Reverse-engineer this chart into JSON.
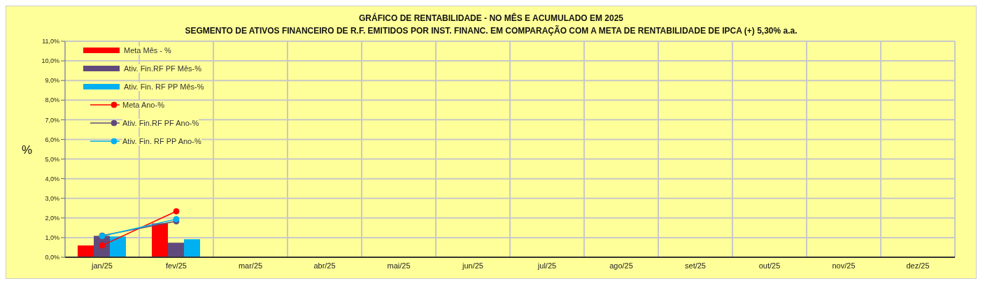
{
  "chart_data": {
    "type": "bar",
    "title": "GRÁFICO DE RENTABILIDADE - NO MÊS E ACUMULADO EM 2025",
    "subtitle": "SEGMENTO DE ATIVOS FINANCEIRO DE R.F. EMITIDOS POR INST. FINANC. EM COMPARAÇÃO COM A META DE RENTABILIDADE DE IPCA (+) 5,30% a.a.",
    "ylabel": "%",
    "categories": [
      "jan/25",
      "fev/25",
      "mar/25",
      "abr/25",
      "mai/25",
      "jun/25",
      "jul/25",
      "ago/25",
      "set/25",
      "out/25",
      "nov/25",
      "dez/25"
    ],
    "series": [
      {
        "name": "Meta Mês - %",
        "type": "bar",
        "color": "#ff0000",
        "values": [
          0.6,
          1.73,
          null,
          null,
          null,
          null,
          null,
          null,
          null,
          null,
          null,
          null
        ]
      },
      {
        "name": "Ativ. Fin.RF PF Mês-%",
        "type": "bar",
        "color": "#604a7b",
        "values": [
          1.09,
          0.74,
          null,
          null,
          null,
          null,
          null,
          null,
          null,
          null,
          null,
          null
        ]
      },
      {
        "name": "Ativ. Fin. RF PP Mês-%",
        "type": "bar",
        "color": "#00b0f0",
        "values": [
          1.06,
          0.92,
          null,
          null,
          null,
          null,
          null,
          null,
          null,
          null,
          null,
          null
        ]
      },
      {
        "name": "Meta Ano-%",
        "type": "line",
        "color": "#ff0000",
        "values": [
          0.6,
          2.34,
          null,
          null,
          null,
          null,
          null,
          null,
          null,
          null,
          null,
          null
        ]
      },
      {
        "name": "Ativ. Fin.RF PF Ano-%",
        "type": "line",
        "color": "#604a7b",
        "values": [
          1.1,
          1.83,
          null,
          null,
          null,
          null,
          null,
          null,
          null,
          null,
          null,
          null
        ]
      },
      {
        "name": "Ativ. Fin. RF PP Ano-%",
        "type": "line",
        "color": "#00b0f0",
        "values": [
          1.08,
          1.94,
          null,
          null,
          null,
          null,
          null,
          null,
          null,
          null,
          null,
          null
        ]
      }
    ],
    "ylim": [
      0,
      11
    ],
    "yticks": [
      {
        "value": 0,
        "label": "0,0%"
      },
      {
        "value": 1,
        "label": "1,0%"
      },
      {
        "value": 2,
        "label": "2,0%"
      },
      {
        "value": 3,
        "label": "3,0%"
      },
      {
        "value": 4,
        "label": "4,0%"
      },
      {
        "value": 5,
        "label": "5,0%"
      },
      {
        "value": 6,
        "label": "6,0%"
      },
      {
        "value": 7,
        "label": "7,0%"
      },
      {
        "value": 8,
        "label": "8,0%"
      },
      {
        "value": 9,
        "label": "9,0%"
      },
      {
        "value": 10,
        "label": "10,0%"
      },
      {
        "value": 11,
        "label": "11,0%"
      }
    ],
    "grid": true,
    "legend": "top left",
    "marker": "circle",
    "line_style": "solid"
  }
}
